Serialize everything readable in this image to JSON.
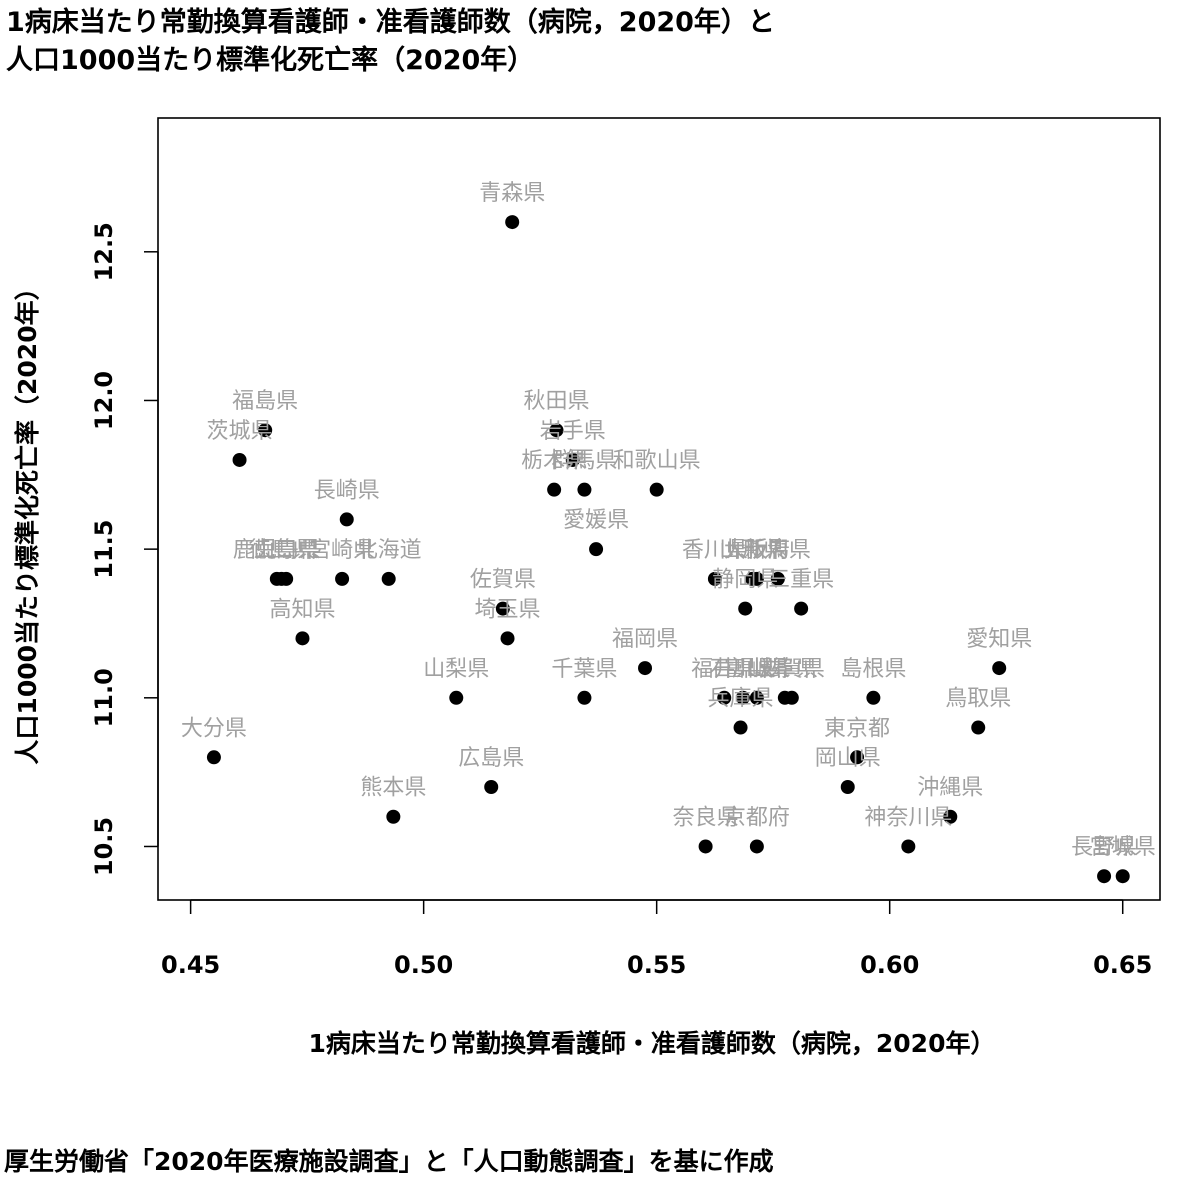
{
  "title_lines": [
    "1病床当たり常勤換算看護師・准看護師数（病院，2020年）と",
    "人口1000当たり標準化死亡率（2020年）"
  ],
  "caption": "厚生労働省「2020年医療施設調査」と「人口動態調査」を基に作成",
  "chart_data": {
    "type": "scatter",
    "title": "1病床当たり常勤換算看護師・准看護師数（病院，2020年）と人口1000当たり標準化死亡率（2020年）",
    "xlabel": "1病床当たり常勤換算看護師・准看護師数（病院，2020年）",
    "ylabel": "人口1000当たり標準化死亡率（2020年）",
    "xlim": [
      0.443,
      0.658
    ],
    "ylim": [
      10.32,
      12.95
    ],
    "x_ticks": [
      0.45,
      0.5,
      0.55,
      0.6,
      0.65
    ],
    "x_tick_labels": [
      "0.45",
      "0.50",
      "0.55",
      "0.60",
      "0.65"
    ],
    "y_ticks": [
      10.5,
      11.0,
      11.5,
      12.0,
      12.5
    ],
    "y_tick_labels": [
      "10.5",
      "11.0",
      "11.5",
      "12.0",
      "12.5"
    ],
    "grid": false,
    "marker_color": "#000000",
    "label_color": "#a0a0a0",
    "points": [
      {
        "label": "青森県",
        "x": 0.519,
        "y": 12.6
      },
      {
        "label": "福島県",
        "x": 0.466,
        "y": 11.9
      },
      {
        "label": "茨城県",
        "x": 0.4605,
        "y": 11.8
      },
      {
        "label": "秋田県",
        "x": 0.5285,
        "y": 11.9
      },
      {
        "label": "岩手県",
        "x": 0.532,
        "y": 11.8
      },
      {
        "label": "栃木県",
        "x": 0.528,
        "y": 11.7
      },
      {
        "label": "群馬県",
        "x": 0.5345,
        "y": 11.7
      },
      {
        "label": "和歌山県",
        "x": 0.55,
        "y": 11.7
      },
      {
        "label": "長崎県",
        "x": 0.4835,
        "y": 11.6
      },
      {
        "label": "愛媛県",
        "x": 0.537,
        "y": 11.5
      },
      {
        "label": "山形県",
        "x": 0.5705,
        "y": 11.4
      },
      {
        "label": "鹿児島県",
        "x": 0.4685,
        "y": 11.4
      },
      {
        "label": "徳島県",
        "x": 0.4695,
        "y": 11.4
      },
      {
        "label": "山口県",
        "x": 0.4705,
        "y": 11.4
      },
      {
        "label": "宮崎県",
        "x": 0.4825,
        "y": 11.4
      },
      {
        "label": "北海道",
        "x": 0.4925,
        "y": 11.4
      },
      {
        "label": "香川県",
        "x": 0.5625,
        "y": 11.4
      },
      {
        "label": "大阪府",
        "x": 0.5715,
        "y": 11.4
      },
      {
        "label": "新潟県",
        "x": 0.576,
        "y": 11.4
      },
      {
        "label": "佐賀県",
        "x": 0.517,
        "y": 11.3
      },
      {
        "label": "静岡県",
        "x": 0.569,
        "y": 11.3
      },
      {
        "label": "三重県",
        "x": 0.581,
        "y": 11.3
      },
      {
        "label": "高知県",
        "x": 0.474,
        "y": 11.2
      },
      {
        "label": "埼玉県",
        "x": 0.518,
        "y": 11.2
      },
      {
        "label": "福岡県",
        "x": 0.5475,
        "y": 11.1
      },
      {
        "label": "愛知県",
        "x": 0.6235,
        "y": 11.1
      },
      {
        "label": "山梨県",
        "x": 0.507,
        "y": 11.0
      },
      {
        "label": "千葉県",
        "x": 0.5345,
        "y": 11.0
      },
      {
        "label": "福井県",
        "x": 0.5645,
        "y": 11.0
      },
      {
        "label": "石川県",
        "x": 0.5685,
        "y": 11.0
      },
      {
        "label": "富山県",
        "x": 0.5715,
        "y": 11.0
      },
      {
        "label": "岐阜県",
        "x": 0.5775,
        "y": 11.0
      },
      {
        "label": "滋賀県",
        "x": 0.579,
        "y": 11.0
      },
      {
        "label": "島根県",
        "x": 0.5965,
        "y": 11.0
      },
      {
        "label": "兵庫県",
        "x": 0.568,
        "y": 10.9
      },
      {
        "label": "鳥取県",
        "x": 0.619,
        "y": 10.9
      },
      {
        "label": "大分県",
        "x": 0.455,
        "y": 10.8
      },
      {
        "label": "東京都",
        "x": 0.593,
        "y": 10.8
      },
      {
        "label": "広島県",
        "x": 0.5145,
        "y": 10.7
      },
      {
        "label": "岡山県",
        "x": 0.591,
        "y": 10.7
      },
      {
        "label": "熊本県",
        "x": 0.4935,
        "y": 10.6
      },
      {
        "label": "沖縄県",
        "x": 0.613,
        "y": 10.6
      },
      {
        "label": "奈良県",
        "x": 0.5605,
        "y": 10.5
      },
      {
        "label": "京都府",
        "x": 0.5715,
        "y": 10.5
      },
      {
        "label": "神奈川県",
        "x": 0.604,
        "y": 10.5
      },
      {
        "label": "長野県",
        "x": 0.646,
        "y": 10.4
      },
      {
        "label": "宮城県",
        "x": 0.65,
        "y": 10.4
      }
    ]
  }
}
